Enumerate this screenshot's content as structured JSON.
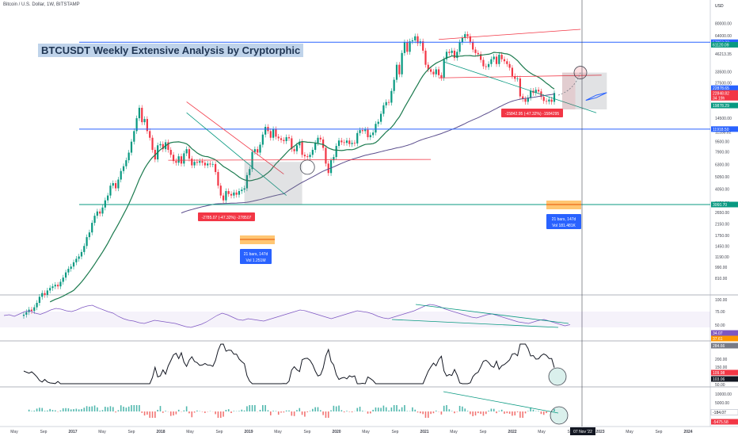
{
  "header": {
    "symbol_line": "Bitcoin / U.S. Dollar, 1W, BITSTAMP",
    "headline": "BTCUSDT Weekly Extensive Analysis by Cryptorphic",
    "currency": "USD"
  },
  "chart_data": {
    "type": "candlestick",
    "title": "BTCUSDT Weekly Extensive Analysis by Cryptorphic",
    "subtitle": "Bitcoin / U.S. Dollar, 1W, BITSTAMP",
    "y_scale": "log",
    "ylim": [
      600,
      100000
    ],
    "y_ticks": [
      "80000.00",
      "64000.00",
      "46213.35",
      "33500.00",
      "27500.00",
      "21500.00",
      "14500.00",
      "11288.82",
      "9500.00",
      "7900.00",
      "6300.00",
      "5050.00",
      "4050.00",
      "3150.00",
      "2650.00",
      "2150.00",
      "1750.00",
      "1450.00",
      "1190.00",
      "990.00",
      "810.00"
    ],
    "x_ticks": [
      "May",
      "Sep",
      "2017",
      "May",
      "Sep",
      "2018",
      "May",
      "Sep",
      "2019",
      "May",
      "Sep",
      "2020",
      "May",
      "Sep",
      "2021",
      "May",
      "Sep",
      "2022",
      "May",
      "Sep",
      "2023",
      "May",
      "Sep",
      "2024",
      "May"
    ],
    "price_labels": [
      {
        "text": "57053.33",
        "color": "#2962ff"
      },
      {
        "text": "61120.09",
        "color": "#089981"
      },
      {
        "text": "22878.65",
        "color": "#2962ff"
      },
      {
        "text": "22848.82",
        "color": "#f23645"
      },
      {
        "text": "34 19h",
        "color": "#f23645"
      },
      {
        "text": "19878.29",
        "color": "#089981"
      },
      {
        "text": "11918.50",
        "color": "#2962ff"
      },
      {
        "text": "3060.70",
        "color": "#089981"
      }
    ],
    "horizontal_levels": [
      {
        "value": 57053.33,
        "color": "#2962ff"
      },
      {
        "value": 11918.5,
        "color": "#2962ff"
      },
      {
        "value": 3060.7,
        "color": "#089981"
      }
    ],
    "annotations": [
      {
        "text": "-2785.07 (-47.32%) -278507",
        "color": "#f23645"
      },
      {
        "text": "-15842.95 (-47.32%) -1584295",
        "color": "#f23645"
      },
      {
        "text": "21 bars, 147d",
        "color": "#2962ff"
      },
      {
        "text": "Vol 1.251M",
        "color": "#2962ff"
      },
      {
        "text": "21 bars, 147d",
        "color": "#2962ff"
      },
      {
        "text": "Vol 181.481K",
        "color": "#2962ff"
      }
    ],
    "candles_weekly_close": [
      420,
      440,
      460,
      450,
      480,
      520,
      580,
      620,
      600,
      650,
      680,
      700,
      720,
      700,
      760,
      820,
      900,
      960,
      1000,
      1080,
      1150,
      1200,
      1300,
      1450,
      1700,
      1850,
      2200,
      2500,
      2700,
      2600,
      2900,
      3300,
      3600,
      4300,
      4500,
      4100,
      4800,
      5600,
      6100,
      6800,
      7800,
      9500,
      11500,
      14500,
      17500,
      13500,
      14300,
      11500,
      10200,
      8200,
      6900,
      8900,
      9100,
      8300,
      9400,
      8200,
      7500,
      6700,
      6500,
      7300,
      6400,
      7700,
      8300,
      7000,
      6200,
      6600,
      6500,
      6700,
      6500,
      6200,
      6400,
      6300,
      6350,
      5500,
      4300,
      3600,
      3300,
      3900,
      3700,
      3600,
      3800,
      3650,
      3900,
      4000,
      4100,
      5200,
      5800,
      7900,
      8300,
      7800,
      9000,
      10800,
      12400,
      11500,
      10200,
      11900,
      10400,
      10100,
      9800,
      9600,
      10300,
      10100,
      8300,
      8000,
      8900,
      9500,
      7500,
      7300,
      7200,
      7500,
      8200,
      9300,
      10200,
      9900,
      8500,
      6400,
      5400,
      6800,
      7200,
      8800,
      9700,
      9400,
      9300,
      9700,
      9100,
      9300,
      9200,
      11100,
      11700,
      11500,
      11800,
      10300,
      10700,
      11200,
      13100,
      13600,
      15700,
      18300,
      19400,
      19200,
      23700,
      29000,
      38000,
      32000,
      47000,
      57000,
      48000,
      58000,
      59000,
      63500,
      56000,
      58000,
      49000,
      38000,
      35000,
      33500,
      32000,
      35000,
      31500,
      30000,
      42000,
      48000,
      47000,
      49000,
      43000,
      48000,
      57000,
      61500,
      66000,
      63500,
      57500,
      50000,
      47000,
      46000,
      41500,
      37000,
      36500,
      38500,
      42000,
      44000,
      38500,
      45500,
      42000,
      40500,
      38500,
      36000,
      31000,
      29500,
      29700,
      21500,
      20500,
      19500,
      21000,
      23800,
      22900,
      24200,
      23500,
      21300,
      19800,
      19600,
      20300,
      19500,
      22848
    ]
  },
  "indicators": {
    "rsi": {
      "ticks": [
        "100.00",
        "75.00",
        "50.00",
        "34.07",
        "37.61"
      ],
      "values": [
        60,
        62,
        58,
        64,
        70,
        72,
        66,
        63,
        68,
        74,
        78,
        76,
        72,
        70,
        74,
        80,
        84,
        86,
        80,
        75,
        70,
        66,
        58,
        52,
        48,
        46,
        42,
        40,
        44,
        48,
        46,
        44,
        42,
        40,
        36,
        32,
        30,
        34,
        38,
        44,
        52,
        60,
        66,
        62,
        56,
        50,
        48,
        52,
        50,
        48,
        46,
        50,
        54,
        58,
        62,
        66,
        70,
        74,
        72,
        68,
        64,
        60,
        56,
        52,
        56,
        60,
        64,
        68,
        72,
        70,
        68,
        64,
        58,
        54,
        52,
        56,
        60,
        64,
        68,
        72,
        78,
        84,
        88,
        86,
        82,
        76,
        72,
        68,
        64,
        60,
        56,
        54,
        58,
        62,
        64,
        60,
        56,
        52,
        48,
        44,
        42,
        40,
        44,
        48,
        50,
        46,
        42,
        38,
        34,
        37
      ]
    },
    "oscillator": {
      "ticks": [
        "284.66",
        "200.00",
        "150.00",
        "109.98",
        "103.06",
        "50.00"
      ]
    },
    "macd": {
      "ticks": [
        "10000.00",
        "5000.00",
        "-184.07",
        "-5475.58"
      ]
    }
  },
  "time_label": "07 Nov '22"
}
